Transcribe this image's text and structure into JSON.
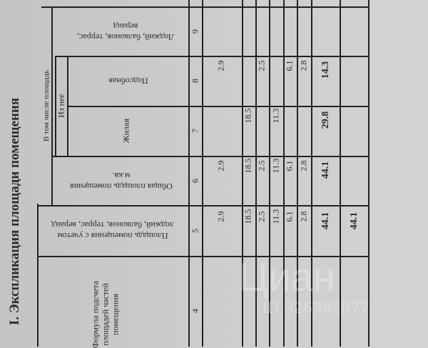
{
  "title": "I. Экспликация площади помещения",
  "headers": {
    "col4": [
      "Формула подсчета",
      "площадей частей",
      "помещения"
    ],
    "col5": [
      "Площадь помещения с учетом",
      "лоджий, балконов, террас, веранд"
    ],
    "col6": [
      "Общая площадь помещения",
      "м.кв."
    ],
    "group": "В том числе площадь",
    "subgroup": "Из нее",
    "col7": "Жилая",
    "col8": "Подсобная",
    "col9": [
      "Лоджий, балконов, террас,",
      "веранд"
    ]
  },
  "column_numbers": [
    "4",
    "5",
    "6",
    "7",
    "8",
    "9"
  ],
  "rows": [
    {
      "c5": "2.9",
      "c6": "2.9",
      "c7": "",
      "c8": "2.9"
    },
    {
      "c5": "18.5",
      "c6": "18.5",
      "c7": "18.5",
      "c8": ""
    },
    {
      "c5": "2.5",
      "c6": "2.5",
      "c7": "",
      "c8": "2.5"
    },
    {
      "c5": "11.3",
      "c6": "11.3",
      "c7": "11.3",
      "c8": ""
    },
    {
      "c5": "6.1",
      "c6": "6.1",
      "c7": "",
      "c8": "6.1"
    },
    {
      "c5": "2.8",
      "c6": "2.8",
      "c7": "",
      "c8": "2.8"
    }
  ],
  "totals": {
    "c5": "44.1",
    "c6": "44.1",
    "c7": "29.8",
    "c8": "14.3"
  },
  "grand_total": {
    "c5": "44.1"
  },
  "watermark": {
    "brand": "Циан",
    "id": "ID 326392077"
  }
}
